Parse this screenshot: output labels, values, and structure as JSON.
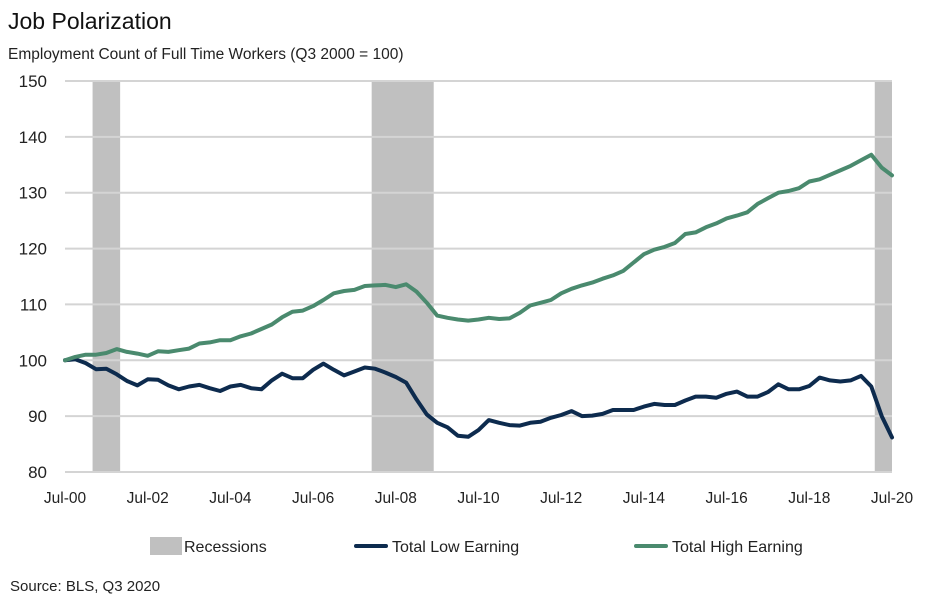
{
  "chart_data": {
    "type": "line",
    "title": "Job Polarization",
    "subtitle": "Employment Count of Full Time Workers (Q3 2000 = 100)",
    "source": "Source: BLS, Q3 2020",
    "ylim": [
      80,
      150
    ],
    "yticks": [
      80,
      90,
      100,
      110,
      120,
      130,
      140,
      150
    ],
    "xticks": [
      {
        "date": "2000-07",
        "label": "Jul-00"
      },
      {
        "date": "2002-07",
        "label": "Jul-02"
      },
      {
        "date": "2004-07",
        "label": "Jul-04"
      },
      {
        "date": "2006-07",
        "label": "Jul-06"
      },
      {
        "date": "2008-07",
        "label": "Jul-08"
      },
      {
        "date": "2010-07",
        "label": "Jul-10"
      },
      {
        "date": "2012-07",
        "label": "Jul-12"
      },
      {
        "date": "2014-07",
        "label": "Jul-14"
      },
      {
        "date": "2016-07",
        "label": "Jul-16"
      },
      {
        "date": "2018-07",
        "label": "Jul-18"
      },
      {
        "date": "2020-07",
        "label": "Jul-20"
      }
    ],
    "grid": true,
    "legend_position": "bottom",
    "recessions": {
      "name": "Recessions",
      "color": "#c0c0c0",
      "periods": [
        [
          "2001-03",
          "2001-11"
        ],
        [
          "2007-12",
          "2009-06"
        ],
        [
          "2020-02",
          "2020-07"
        ]
      ]
    },
    "x_start": "2000-07",
    "x_frequency": "quarterly",
    "series": [
      {
        "name": "Total  Low Earning",
        "color": "#0d2b4e",
        "values": [
          100,
          100.2,
          99.5,
          98.4,
          98.5,
          97.5,
          96.3,
          95.5,
          96.6,
          96.5,
          95.5,
          94.8,
          95.3,
          95.6,
          95.0,
          94.5,
          95.3,
          95.6,
          95.0,
          94.8,
          96.4,
          97.6,
          96.8,
          96.8,
          98.3,
          99.4,
          98.3,
          97.3,
          98.0,
          98.7,
          98.5,
          97.8,
          97.0,
          96.0,
          93.0,
          90.3,
          88.8,
          88.0,
          86.5,
          86.3,
          87.5,
          89.3,
          88.8,
          88.4,
          88.3,
          88.8,
          89.0,
          89.7,
          90.2,
          90.9,
          90.0,
          90.1,
          90.4,
          91.1,
          91.1,
          91.1,
          91.7,
          92.2,
          92.0,
          92.0,
          92.8,
          93.5,
          93.5,
          93.3,
          94.0,
          94.4,
          93.5,
          93.5,
          94.3,
          95.7,
          94.8,
          94.8,
          95.4,
          96.9,
          96.4,
          96.2,
          96.4,
          97.2,
          95.3,
          90.0,
          86.2
        ]
      },
      {
        "name": "Total High Earning",
        "color": "#4a8a6e",
        "values": [
          100,
          100.6,
          101,
          101,
          101.3,
          102,
          101.5,
          101.2,
          100.8,
          101.6,
          101.5,
          101.8,
          102.1,
          103,
          103.2,
          103.6,
          103.6,
          104.3,
          104.8,
          105.6,
          106.4,
          107.7,
          108.7,
          108.9,
          109.7,
          110.8,
          112,
          112.4,
          112.6,
          113.3,
          113.4,
          113.5,
          113.1,
          113.6,
          112.3,
          110.3,
          108,
          107.6,
          107.3,
          107.1,
          107.3,
          107.6,
          107.4,
          107.5,
          108.5,
          109.8,
          110.3,
          110.8,
          112,
          112.8,
          113.4,
          113.9,
          114.6,
          115.2,
          116,
          117.5,
          119,
          119.8,
          120.3,
          121,
          122.6,
          122.9,
          123.8,
          124.5,
          125.4,
          125.9,
          126.5,
          128,
          129,
          130,
          130.3,
          130.8,
          132,
          132.4,
          133.2,
          134,
          134.8,
          135.8,
          136.8,
          134.5,
          133.1
        ]
      }
    ]
  }
}
